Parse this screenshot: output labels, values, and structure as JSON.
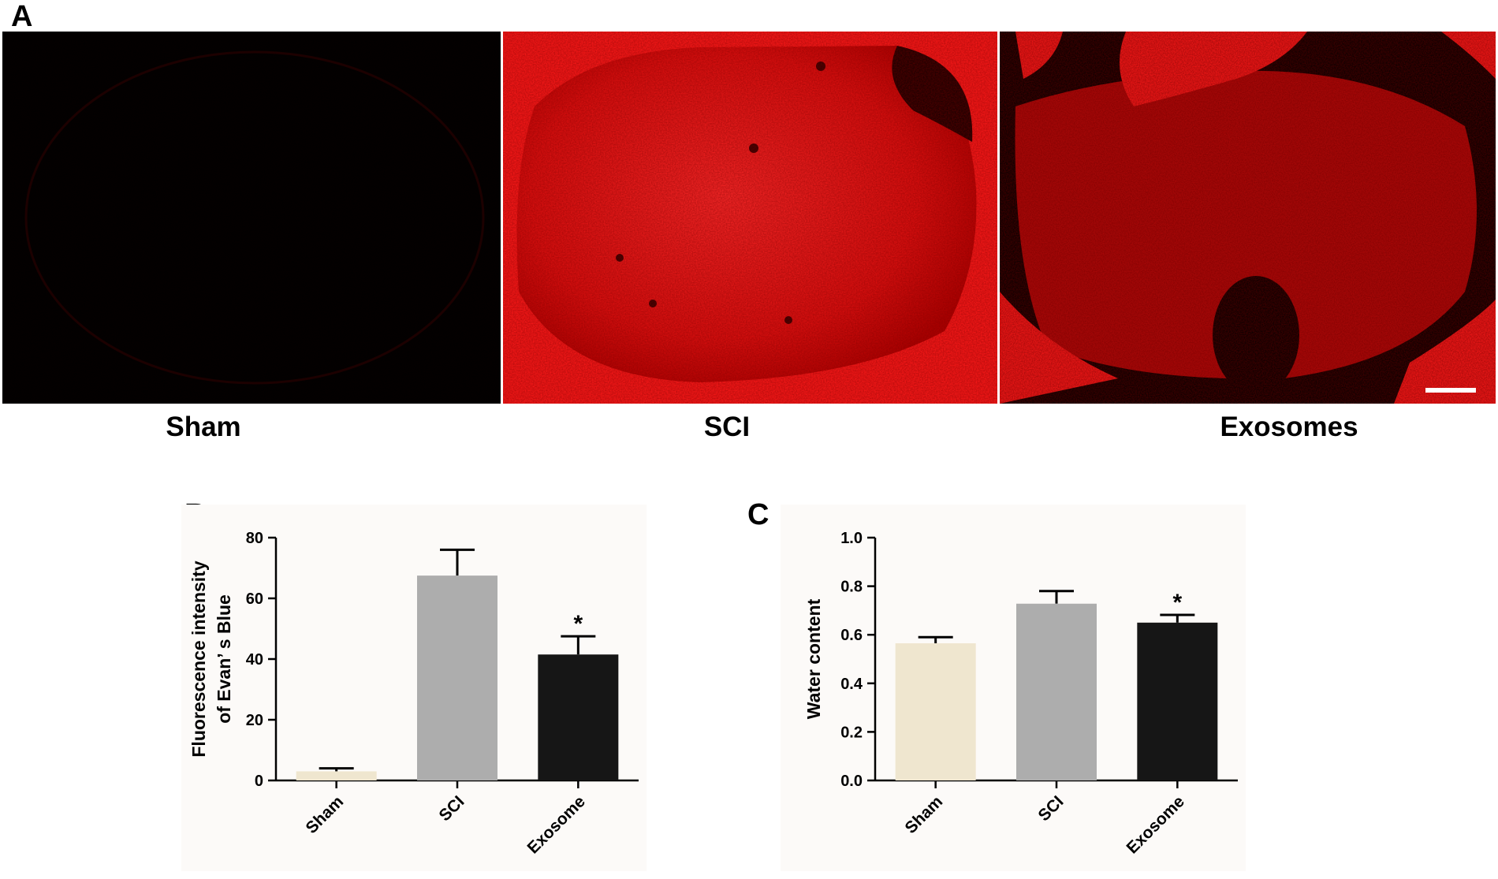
{
  "panels": {
    "a_letter": "A",
    "b_letter": "B",
    "c_letter": "C"
  },
  "conditions": [
    "Sham",
    "SCI",
    "Exosomes"
  ],
  "colors": {
    "sham": "#efe6cf",
    "sci": "#adadad",
    "exosome": "#161616",
    "fluorescence": "#ff1a1a"
  },
  "chart_data": [
    {
      "type": "bar",
      "categories": [
        "Sham",
        "SCI",
        "Exosome"
      ],
      "values": [
        3,
        67.5,
        41.5
      ],
      "errors": [
        1,
        8.5,
        6
      ],
      "annotations": [
        "",
        "",
        "*"
      ],
      "ylabel_lines": [
        "Fluorescence intensity",
        "of Evan’ s Blue"
      ],
      "xlabel": "",
      "ylim": [
        0,
        80
      ],
      "yticks": [
        "0",
        "20",
        "40",
        "60",
        "80"
      ],
      "grid": false
    },
    {
      "type": "bar",
      "categories": [
        "Sham",
        "SCI",
        "Exosome"
      ],
      "values": [
        0.565,
        0.728,
        0.65
      ],
      "errors": [
        0.025,
        0.052,
        0.032
      ],
      "annotations": [
        "",
        "",
        "*"
      ],
      "ylabel_lines": [
        "Water content"
      ],
      "xlabel": "",
      "ylim": [
        0,
        1.0
      ],
      "yticks": [
        "0.0",
        "0.2",
        "0.4",
        "0.6",
        "0.8",
        "1.0"
      ],
      "grid": false
    }
  ]
}
